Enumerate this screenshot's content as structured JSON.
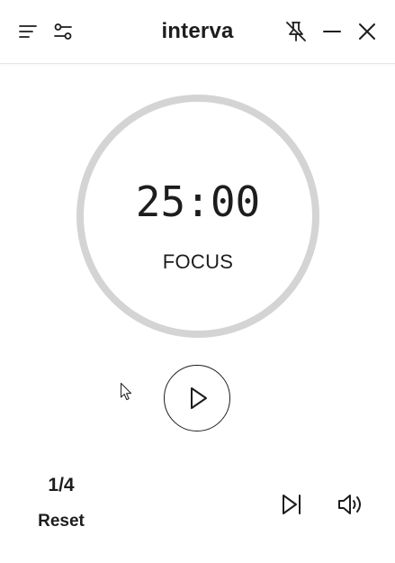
{
  "app": {
    "title": "interva"
  },
  "titlebar": {
    "menu_icon": "menu-icon",
    "settings_icon": "sliders-icon",
    "pin_icon": "pin-off-icon",
    "minimize_icon": "minimize-icon",
    "close_icon": "close-icon"
  },
  "timer": {
    "time": "25:00",
    "phase": "FOCUS",
    "progress": 0,
    "ring_color": "#d4d4d4"
  },
  "controls": {
    "play_icon": "play-icon",
    "round": "1/4",
    "reset_label": "Reset",
    "skip_icon": "skip-forward-icon",
    "volume_icon": "volume-icon"
  },
  "colors": {
    "text": "#1d1d1d",
    "background": "#ffffff",
    "ring": "#d4d4d4"
  }
}
